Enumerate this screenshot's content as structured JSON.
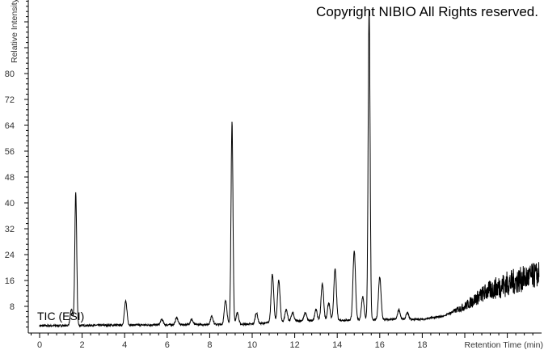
{
  "chart_data": {
    "type": "line",
    "title": "",
    "watermark": "Copyright NIBIO All Rights reserved.",
    "trace_label": "TIC (ESI)",
    "xlabel": "Retention Time (min)",
    "ylabel": "Relative Intensity",
    "xlim": [
      -0.5,
      23.5
    ],
    "ylim": [
      0,
      103
    ],
    "x_ticks": [
      "0",
      "2",
      "4",
      "6",
      "8",
      "10",
      "12",
      "14",
      "16",
      "18"
    ],
    "y_ticks": [
      "8",
      "16",
      "24",
      "32",
      "40",
      "48",
      "56",
      "64",
      "72",
      "80"
    ],
    "grid": false,
    "line_color": "#000000",
    "baseline": [
      [
        0,
        2
      ],
      [
        10,
        2.5
      ],
      [
        12,
        3.5
      ],
      [
        17,
        4
      ],
      [
        18,
        4
      ],
      [
        19,
        5
      ],
      [
        20,
        8
      ],
      [
        21,
        12.5
      ],
      [
        22,
        15
      ],
      [
        23,
        17
      ],
      [
        23.5,
        18
      ]
    ],
    "peaks": [
      {
        "rt": 1.5,
        "intensity": 7
      },
      {
        "rt": 1.7,
        "intensity": 43
      },
      {
        "rt": 4.05,
        "intensity": 9.5
      },
      {
        "rt": 5.75,
        "intensity": 4
      },
      {
        "rt": 6.45,
        "intensity": 4.5
      },
      {
        "rt": 7.15,
        "intensity": 4
      },
      {
        "rt": 8.1,
        "intensity": 5
      },
      {
        "rt": 8.75,
        "intensity": 10
      },
      {
        "rt": 9.05,
        "intensity": 65
      },
      {
        "rt": 9.3,
        "intensity": 6
      },
      {
        "rt": 10.2,
        "intensity": 6
      },
      {
        "rt": 10.95,
        "intensity": 18
      },
      {
        "rt": 11.25,
        "intensity": 16
      },
      {
        "rt": 11.6,
        "intensity": 7
      },
      {
        "rt": 11.9,
        "intensity": 6
      },
      {
        "rt": 12.5,
        "intensity": 6
      },
      {
        "rt": 13.0,
        "intensity": 7
      },
      {
        "rt": 13.3,
        "intensity": 15
      },
      {
        "rt": 13.6,
        "intensity": 9
      },
      {
        "rt": 13.9,
        "intensity": 19.5
      },
      {
        "rt": 14.8,
        "intensity": 25
      },
      {
        "rt": 15.2,
        "intensity": 11
      },
      {
        "rt": 15.5,
        "intensity": 100
      },
      {
        "rt": 16.0,
        "intensity": 17
      },
      {
        "rt": 16.9,
        "intensity": 7
      },
      {
        "rt": 17.3,
        "intensity": 6
      }
    ]
  }
}
